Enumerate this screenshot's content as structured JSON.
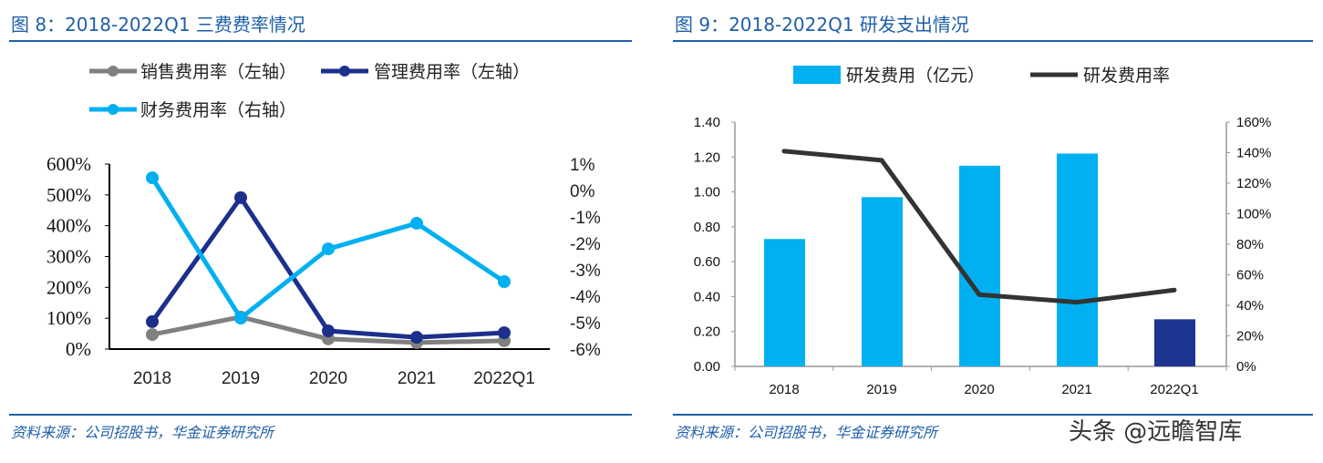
{
  "watermark": "头条 @远瞻智库",
  "colors": {
    "title": "#1F5FA8",
    "sales": "#808080",
    "mgmt": "#1C2F8C",
    "finance": "#00B0F0",
    "bar": "#00B0F0",
    "bar_highlight": "#1C3590",
    "rd_rate": "#333333"
  },
  "chart_data": [
    {
      "type": "line",
      "title": "图 8：2018-2022Q1 三费费率情况",
      "source": "资料来源：公司招股书，华金证券研究所",
      "categories": [
        "2018",
        "2019",
        "2020",
        "2021",
        "2022Q1"
      ],
      "y_left": {
        "range": [
          0,
          600
        ],
        "ticks": [
          "600%",
          "500%",
          "400%",
          "300%",
          "200%",
          "100%",
          "0%"
        ]
      },
      "y_right": {
        "range": [
          -6,
          1
        ],
        "ticks": [
          "1%",
          "0%",
          "-1%",
          "-2%",
          "-3%",
          "-4%",
          "-5%",
          "-6%"
        ]
      },
      "legend_position": "top-left",
      "grid": false,
      "series": [
        {
          "name": "销售费用率（左轴）",
          "axis": "left",
          "values": [
            47,
            104,
            33,
            21,
            27
          ]
        },
        {
          "name": "管理费用率（左轴）",
          "axis": "left",
          "values": [
            89,
            491,
            59,
            38,
            53
          ]
        },
        {
          "name": "财务费用率（右轴）",
          "axis": "right",
          "values": [
            0.48,
            -4.83,
            -2.21,
            -1.24,
            -3.45
          ]
        }
      ]
    },
    {
      "type": "bar+line",
      "title": "图 9：2018-2022Q1 研发支出情况",
      "source": "资料来源：公司招股书，华金证券研究所",
      "categories": [
        "2018",
        "2019",
        "2020",
        "2021",
        "2022Q1"
      ],
      "y_left": {
        "range": [
          0,
          1.4
        ],
        "ticks": [
          "1.40",
          "1.20",
          "1.00",
          "0.80",
          "0.60",
          "0.40",
          "0.20",
          "0.00"
        ]
      },
      "y_right": {
        "range": [
          0,
          160
        ],
        "ticks": [
          "160%",
          "140%",
          "120%",
          "100%",
          "80%",
          "60%",
          "40%",
          "20%",
          "0%"
        ]
      },
      "legend_position": "top",
      "grid": false,
      "series": [
        {
          "name": "研发费用（亿元）",
          "type": "bar",
          "axis": "left",
          "values": [
            0.73,
            0.97,
            1.15,
            1.22,
            0.27
          ]
        },
        {
          "name": "研发费用率",
          "type": "line",
          "axis": "right",
          "values": [
            141,
            135,
            47,
            42,
            50
          ]
        }
      ]
    }
  ]
}
